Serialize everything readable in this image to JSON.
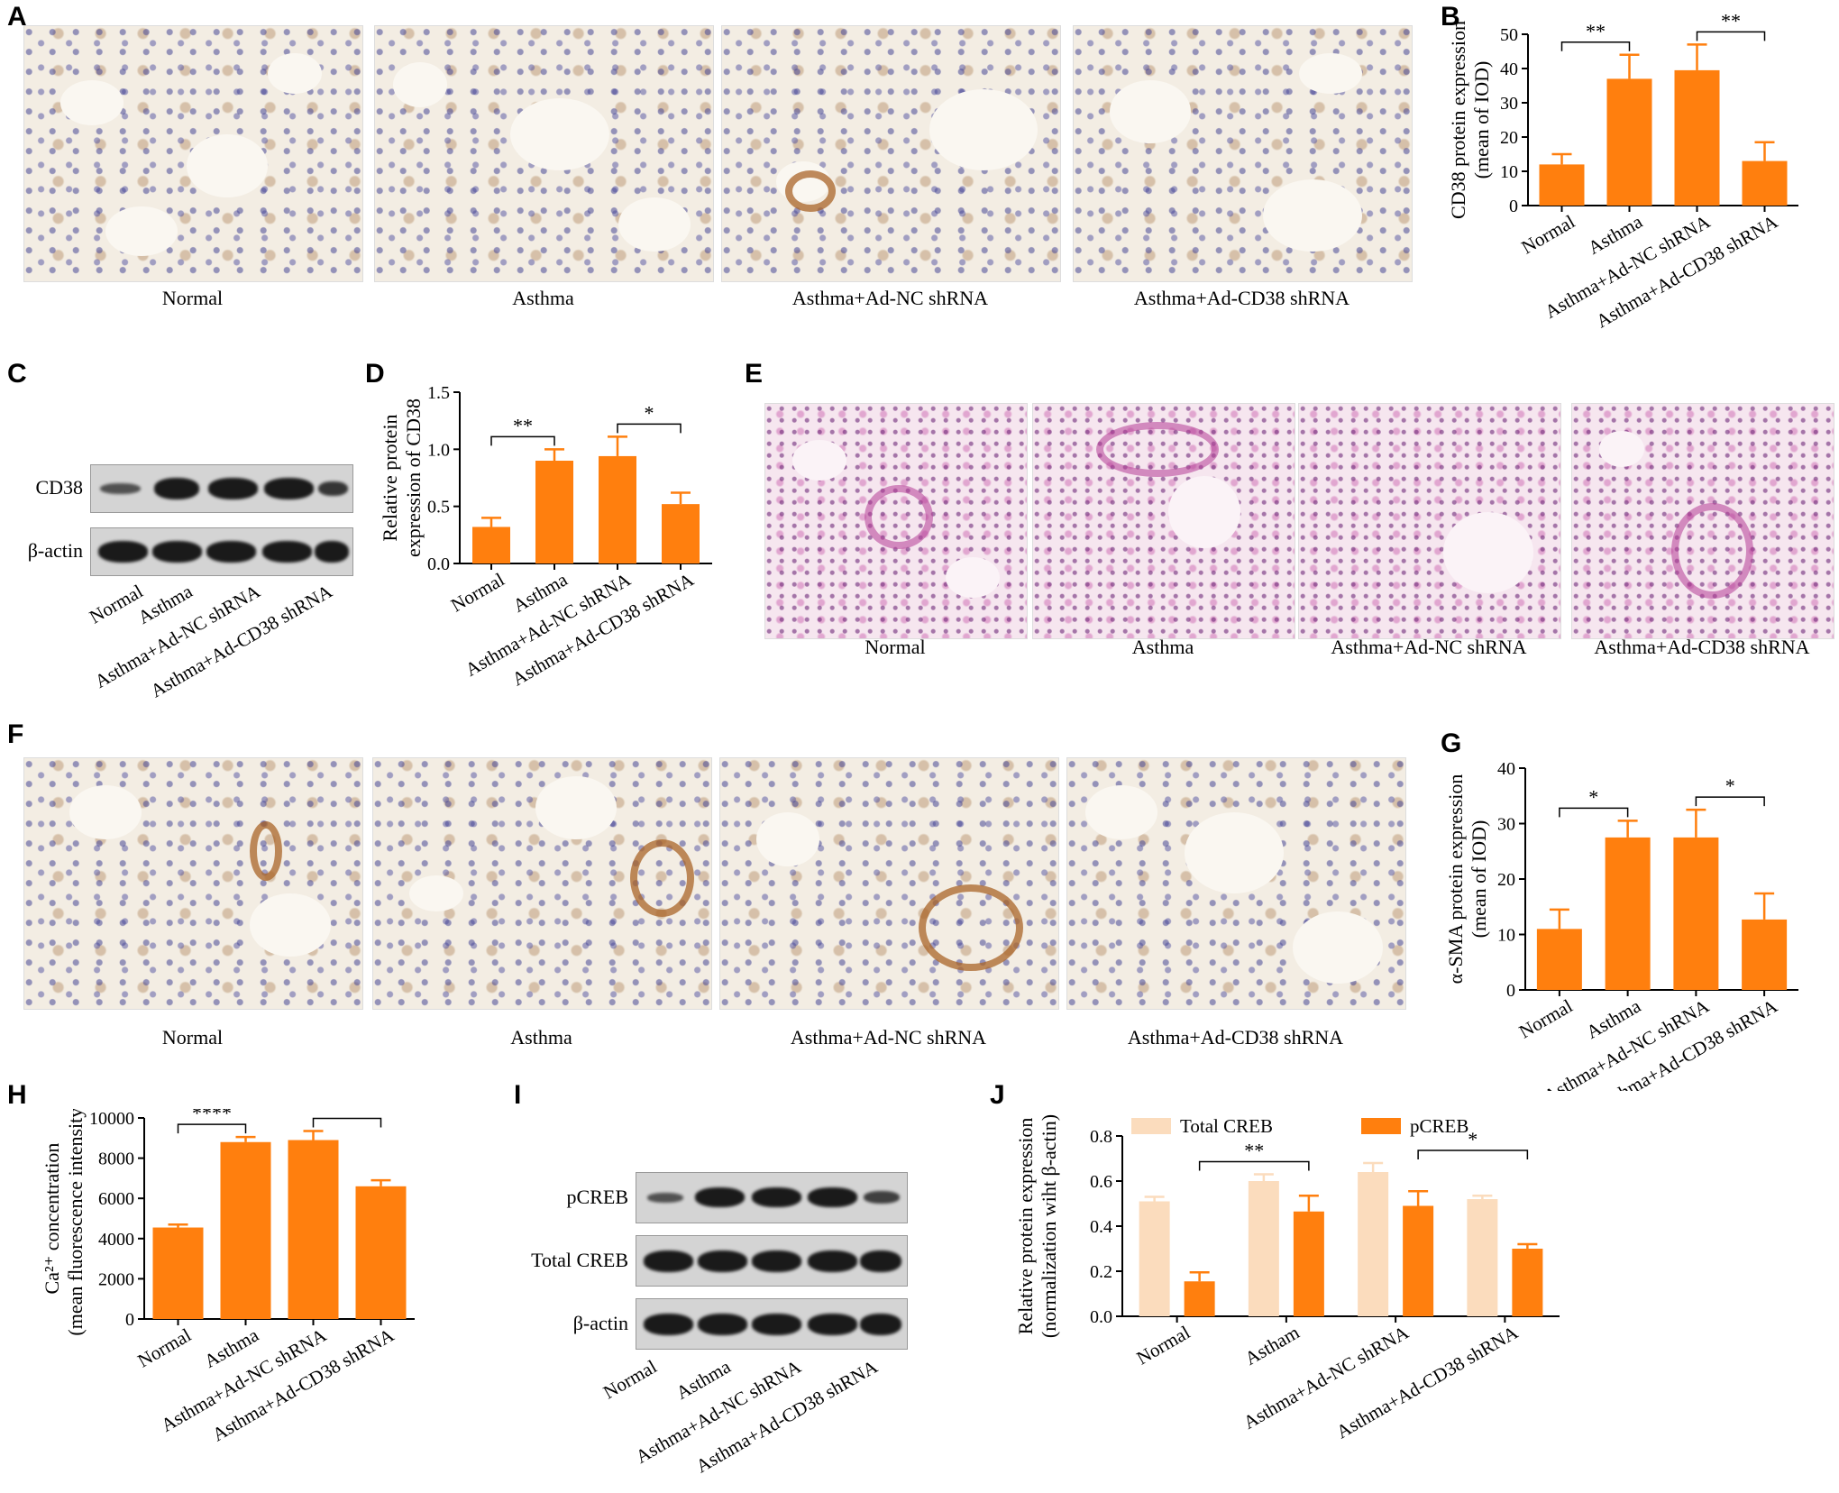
{
  "panels": {
    "A": "A",
    "B": "B",
    "C": "C",
    "D": "D",
    "E": "E",
    "F": "F",
    "G": "G",
    "H": "H",
    "I": "I",
    "J": "J"
  },
  "groups": [
    "Normal",
    "Asthma",
    "Asthma+Ad-NC shRNA",
    "Asthma+Ad-CD38 shRNA"
  ],
  "blots": {
    "C": {
      "rows": [
        "CD38",
        "β-actin"
      ]
    },
    "I": {
      "rows": [
        "pCREB",
        "Total CREB",
        "β-actin"
      ]
    }
  },
  "colors": {
    "bar": "#ff7f0e",
    "total_creb": "#fbdcbd"
  },
  "chart_data": [
    {
      "panel": "B",
      "type": "bar",
      "categories": [
        "Normal",
        "Asthma",
        "Asthma+Ad-NC shRNA",
        "Asthma+Ad-CD38 shRNA"
      ],
      "values": [
        12,
        37,
        39.5,
        13
      ],
      "errors": [
        3,
        7,
        7.5,
        5.5
      ],
      "ylabel": [
        "CD38 protein expression",
        "(mean of IOD)"
      ],
      "ylim": [
        0,
        50
      ],
      "yticks": [
        0,
        10,
        20,
        30,
        40,
        50
      ],
      "significance": [
        {
          "from": 0,
          "to": 1,
          "label": "**"
        },
        {
          "from": 2,
          "to": 3,
          "label": "**"
        }
      ]
    },
    {
      "panel": "D",
      "type": "bar",
      "categories": [
        "Normal",
        "Asthma",
        "Asthma+Ad-NC shRNA",
        "Asthma+Ad-CD38 shRNA"
      ],
      "values": [
        0.32,
        0.9,
        0.94,
        0.52
      ],
      "errors": [
        0.08,
        0.1,
        0.17,
        0.1
      ],
      "ylabel": [
        "Relative protein",
        "expression of CD38"
      ],
      "ylim": [
        0,
        1.5
      ],
      "yticks": [
        0.0,
        0.5,
        1.0,
        1.5
      ],
      "ytick_labels": [
        "0.0",
        "0.5",
        "1.0",
        "1.5"
      ],
      "significance": [
        {
          "from": 0,
          "to": 1,
          "label": "**"
        },
        {
          "from": 2,
          "to": 3,
          "label": "*"
        }
      ]
    },
    {
      "panel": "G",
      "type": "bar",
      "categories": [
        "Normal",
        "Asthma",
        "Asthma+Ad-NC shRNA",
        "Asthma+Ad-CD38 shRNA"
      ],
      "values": [
        11,
        27.5,
        27.5,
        12.7
      ],
      "errors": [
        3.5,
        3,
        5,
        4.7
      ],
      "ylabel": [
        "α-SMA protein expression",
        "(mean of IOD)"
      ],
      "ylim": [
        0,
        40
      ],
      "yticks": [
        0,
        10,
        20,
        30,
        40
      ],
      "significance": [
        {
          "from": 0,
          "to": 1,
          "label": "*"
        },
        {
          "from": 2,
          "to": 3,
          "label": "*"
        }
      ]
    },
    {
      "panel": "H",
      "type": "bar",
      "categories": [
        "Normal",
        "Asthma",
        "Asthma+Ad-NC shRNA",
        "Asthma+Ad-CD38 shRNA"
      ],
      "values": [
        4550,
        8800,
        8900,
        6600
      ],
      "errors": [
        150,
        250,
        450,
        300
      ],
      "ylabel": [
        "Ca²⁺ concentration",
        "(mean fluorescence intensity)"
      ],
      "ylim": [
        0,
        10000
      ],
      "yticks": [
        0,
        2000,
        4000,
        6000,
        8000,
        10000
      ],
      "significance": [
        {
          "from": 0,
          "to": 1,
          "label": "****"
        },
        {
          "from": 2,
          "to": 3,
          "label": "***"
        }
      ]
    },
    {
      "panel": "J",
      "type": "bar",
      "categories": [
        "Normal",
        "Astham",
        "Asthma+Ad-NC shRNA",
        "Asthma+Ad-CD38 shRNA"
      ],
      "series": [
        {
          "name": "Total CREB",
          "values": [
            0.51,
            0.6,
            0.64,
            0.52
          ],
          "errors": [
            0.02,
            0.03,
            0.04,
            0.015
          ]
        },
        {
          "name": "pCREB",
          "values": [
            0.155,
            0.465,
            0.49,
            0.3
          ],
          "errors": [
            0.04,
            0.07,
            0.065,
            0.02
          ]
        }
      ],
      "ylabel": [
        "Relative protein expression",
        "(normalization wiht β-actin)"
      ],
      "ylim": [
        0,
        0.8
      ],
      "yticks": [
        0.0,
        0.2,
        0.4,
        0.6,
        0.8
      ],
      "ytick_labels": [
        "0.0",
        "0.2",
        "0.4",
        "0.6",
        "0.8"
      ],
      "legend": "top",
      "significance": [
        {
          "from": 0,
          "to": 1,
          "label": "**"
        },
        {
          "from": 2,
          "to": 3,
          "label": "*"
        }
      ]
    }
  ]
}
